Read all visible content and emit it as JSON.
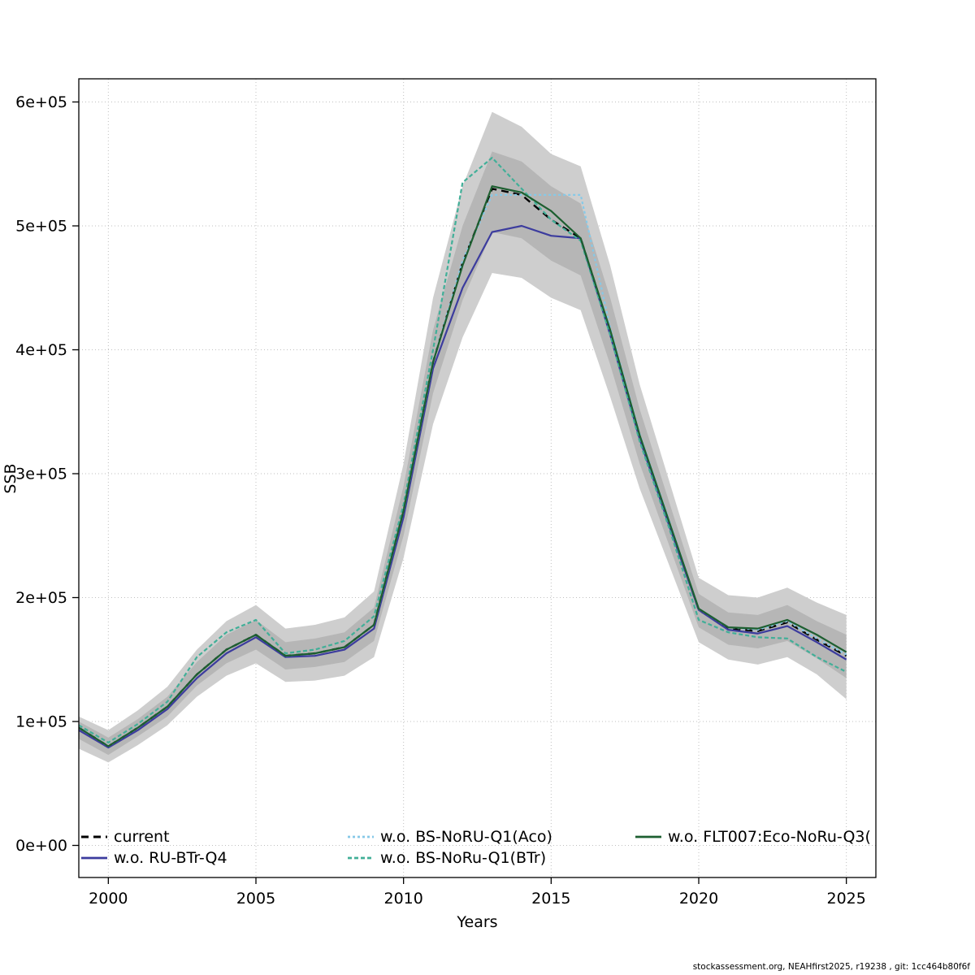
{
  "footer": "stockassessment.org, NEAHfirst2025, r19238 , git: 1cc464b80f6f",
  "chart_data": {
    "type": "line",
    "title": "",
    "xlabel": "Years",
    "ylabel": "SSB",
    "xlim": [
      1999,
      2026
    ],
    "ylim": [
      0,
      600000
    ],
    "grid": true,
    "legend_position": "bottom-inside",
    "xticks": [
      2000,
      2005,
      2010,
      2015,
      2020,
      2025
    ],
    "yticks": [
      0,
      100000,
      200000,
      300000,
      400000,
      500000,
      600000
    ],
    "ytick_labels": [
      "0e+00",
      "1e+05",
      "2e+05",
      "3e+05",
      "4e+05",
      "5e+05",
      "6e+05"
    ],
    "band_colors": [
      "#cecece",
      "#b6b6b6"
    ],
    "years": [
      1999,
      2000,
      2001,
      2002,
      2003,
      2004,
      2005,
      2006,
      2007,
      2008,
      2009,
      2010,
      2011,
      2012,
      2013,
      2014,
      2015,
      2016,
      2017,
      2018,
      2019,
      2020,
      2021,
      2022,
      2023,
      2024,
      2025
    ],
    "bands": [
      {
        "name": "confidence-band-outer",
        "lower": [
          78000,
          67000,
          81000,
          97000,
          120000,
          137000,
          147000,
          132000,
          133000,
          137000,
          152000,
          232000,
          340000,
          410000,
          462000,
          458000,
          442000,
          432000,
          362000,
          288000,
          226000,
          164000,
          150000,
          146000,
          152000,
          138000,
          118000
        ],
        "upper": [
          104000,
          93000,
          109000,
          128000,
          158000,
          181000,
          194000,
          175000,
          178000,
          184000,
          205000,
          308000,
          442000,
          532000,
          592000,
          580000,
          558000,
          548000,
          468000,
          372000,
          294000,
          216000,
          202000,
          200000,
          208000,
          196000,
          186000
        ]
      },
      {
        "name": "confidence-band-inner",
        "lower": [
          86000,
          73000,
          88000,
          104000,
          129000,
          147000,
          158000,
          142000,
          144000,
          148000,
          165000,
          250000,
          365000,
          440000,
          495000,
          490000,
          472000,
          460000,
          388000,
          308000,
          242000,
          176000,
          162000,
          159000,
          165000,
          151000,
          135000
        ],
        "upper": [
          100000,
          87000,
          102000,
          120000,
          148000,
          170000,
          182000,
          164000,
          167000,
          172000,
          192000,
          290000,
          416000,
          500000,
          560000,
          552000,
          532000,
          518000,
          442000,
          352000,
          277000,
          203000,
          188000,
          186000,
          194000,
          181000,
          170000
        ]
      }
    ],
    "series": [
      {
        "name": "current",
        "color": "#000000",
        "dash": "9,6",
        "width": 2.4,
        "values": [
          95000,
          80000,
          95000,
          112000,
          138000,
          158000,
          170000,
          153000,
          155000,
          160000,
          178000,
          270000,
          390000,
          470000,
          530000,
          525000,
          505000,
          490000,
          415000,
          330000,
          260000,
          190000,
          175000,
          173000,
          180000,
          166000,
          153000
        ]
      },
      {
        "name": "w.o. RU-BTr-Q4",
        "color": "#3c3c9e",
        "dash": "",
        "width": 2.2,
        "values": [
          93000,
          79000,
          93000,
          110000,
          135000,
          155000,
          168000,
          152000,
          153000,
          158000,
          175000,
          265000,
          385000,
          450000,
          495000,
          500000,
          492000,
          490000,
          412000,
          328000,
          258000,
          190000,
          174000,
          171000,
          177000,
          164000,
          150000
        ]
      },
      {
        "name": "w.o. BS-NoRU-Q1(Aco)",
        "color": "#86c9e8",
        "dash": "3,3",
        "width": 2.2,
        "values": [
          95000,
          80000,
          95000,
          112000,
          138000,
          158000,
          170000,
          153000,
          155000,
          160000,
          178000,
          270000,
          390000,
          472000,
          525000,
          525000,
          525000,
          525000,
          418000,
          332000,
          262000,
          191000,
          176000,
          174000,
          181000,
          167000,
          154000
        ]
      },
      {
        "name": "w.o. BS-NoRu-Q1(BTr)",
        "color": "#41af98",
        "dash": "5,3",
        "width": 2.2,
        "values": [
          97000,
          83000,
          98000,
          116000,
          152000,
          172000,
          182000,
          155000,
          158000,
          165000,
          185000,
          275000,
          400000,
          535000,
          555000,
          530000,
          505000,
          488000,
          412000,
          326000,
          256000,
          182000,
          172000,
          168000,
          167000,
          152000,
          140000
        ]
      },
      {
        "name": "w.o. FLT007:Eco-NoRu-Q3(",
        "color": "#1d5f30",
        "dash": "",
        "width": 2.2,
        "values": [
          95000,
          80000,
          95000,
          112000,
          138000,
          158000,
          170000,
          153000,
          155000,
          160000,
          178000,
          270000,
          390000,
          468000,
          532000,
          527000,
          512000,
          490000,
          416000,
          331000,
          261000,
          191000,
          176000,
          175000,
          182000,
          170000,
          156000
        ]
      }
    ]
  }
}
